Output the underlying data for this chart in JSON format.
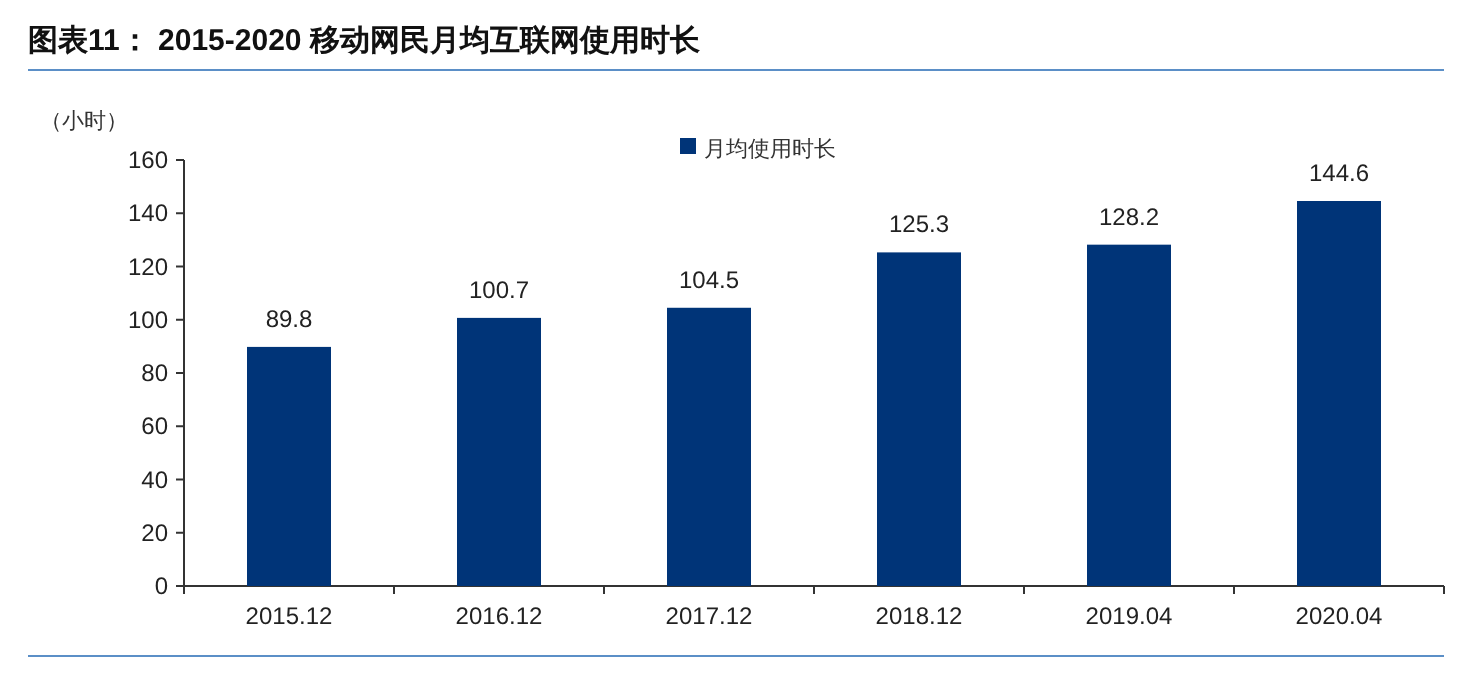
{
  "chart_data": {
    "type": "bar",
    "title": "图表11：  2015-2020 移动网民月均互联网使用时长",
    "ylabel": "（小时）",
    "categories": [
      "2015.12",
      "2016.12",
      "2017.12",
      "2018.12",
      "2019.04",
      "2020.04"
    ],
    "series": [
      {
        "name": "月均使用时长",
        "color": "#003478",
        "values": [
          89.8,
          100.7,
          104.5,
          125.3,
          128.2,
          144.6
        ]
      }
    ],
    "ylim": [
      0,
      160
    ],
    "yticks": [
      0,
      20,
      40,
      60,
      80,
      100,
      120,
      140,
      160
    ],
    "data_labels": true,
    "legend": "top"
  }
}
